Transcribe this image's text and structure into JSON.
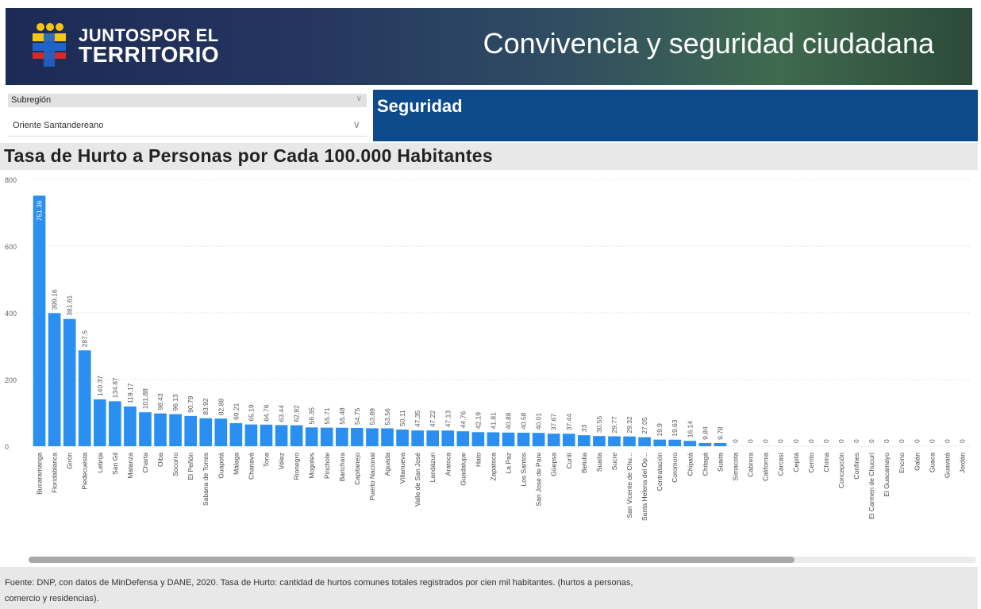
{
  "header": {
    "logo_line1": "JUNTOSPOR EL",
    "logo_line2": "TERRITORIO",
    "title": "Convivencia y seguridad ciudadana",
    "colors": {
      "logo_yellow": "#f5c518",
      "logo_blue": "#1e63c8",
      "logo_red": "#d62828"
    }
  },
  "filter": {
    "label": "Subregión",
    "value": "Oriente Santandereano"
  },
  "section": {
    "title": "Seguridad",
    "color": "#0d4a8c"
  },
  "footer": {
    "source": "Fuente: DNP, con datos de MinDefensa y DANE, 2020. Tasa de Hurto: cantidad de hurtos comunes totales registrados por cien mil habitantes. (hurtos a personas, comercio y residencias)."
  },
  "chart_data": {
    "type": "bar",
    "title": "Tasa de Hurto a Personas por Cada 100.000 Habitantes",
    "xlabel": "",
    "ylabel": "",
    "ylim": [
      0,
      800
    ],
    "yticks": [
      0,
      200,
      400,
      600,
      800
    ],
    "grid": true,
    "bar_color": "#2a8ff0",
    "categories": [
      "Bucaramanga",
      "Floridablanca",
      "Girón",
      "Piedecuesta",
      "Lebrija",
      "San Gil",
      "Matanza",
      "Charta",
      "Oiba",
      "Socorro",
      "El Peñón",
      "Sabana de Torres",
      "Guapotá",
      "Málaga",
      "Chanavá",
      "Tona",
      "Vélez",
      "Rionegro",
      "Mogotes",
      "Pinchote",
      "Barichara",
      "Capitanejo",
      "Puerto Nacional",
      "Aguada",
      "Villanueva",
      "Valle de San José",
      "Landázuri",
      "Aratoca",
      "Guadalupe",
      "Hato",
      "Zapatoca",
      "La Paz",
      "Los Santos",
      "San José de Pare",
      "Güepsa",
      "Curití",
      "Betulia",
      "Suaita",
      "Sucre",
      "San Vicente de Chu...",
      "Santa Helena del Op...",
      "Contratación",
      "Coromoro",
      "Chipatá",
      "Chitagá",
      "Suaita",
      "Simacota",
      "Cabrera",
      "California",
      "Carcasí",
      "Cepitá",
      "Cerrito",
      "Chima",
      "Concepción",
      "Confines",
      "El Carmen de Chucurí",
      "El Guacamayo",
      "Encino",
      "Galán",
      "Guaca",
      "Guavatá",
      "Jordán"
    ],
    "values": [
      751.36,
      399.16,
      381.61,
      287.5,
      140.37,
      134.87,
      119.17,
      101.88,
      98.43,
      96.13,
      90.79,
      83.92,
      82.88,
      69.21,
      65.19,
      64.76,
      63.44,
      62.92,
      56.35,
      55.71,
      55.48,
      54.75,
      53.89,
      53.56,
      50.11,
      47.35,
      47.22,
      47.13,
      44.76,
      42.19,
      41.81,
      40.88,
      40.58,
      40.01,
      37.67,
      37.44,
      33,
      30.55,
      29.77,
      29.32,
      27.05,
      19.9,
      19.63,
      16.14,
      9.84,
      9.78,
      0,
      0,
      0,
      0,
      0,
      0,
      0,
      0,
      0,
      0,
      0,
      0,
      0,
      0,
      0,
      0
    ],
    "data_labels": [
      "751.36",
      "399.16",
      "381.61",
      "287.5",
      "140.37",
      "134.87",
      "119.17",
      "101.88",
      "98.43",
      "96.13",
      "90.79",
      "83.92",
      "82.88",
      "69.21",
      "65.19",
      "64.76",
      "63.44",
      "62.92",
      "56.35",
      "55.71",
      "55.48",
      "54.75",
      "53.89",
      "53.56",
      "50.11",
      "47.35",
      "47.22",
      "47.13",
      "44.76",
      "42.19",
      "41.81",
      "40.88",
      "40.58",
      "40.01",
      "37.67",
      "37.44",
      "33",
      "30.55",
      "29.77",
      "29.32",
      "27.05",
      "19.9",
      "19.63",
      "16.14",
      "9.84",
      "9.78",
      "0",
      "0",
      "0",
      "0",
      "0",
      "0",
      "0",
      "0",
      "0",
      "0",
      "0",
      "0",
      "0",
      "0",
      "0",
      "0"
    ]
  }
}
